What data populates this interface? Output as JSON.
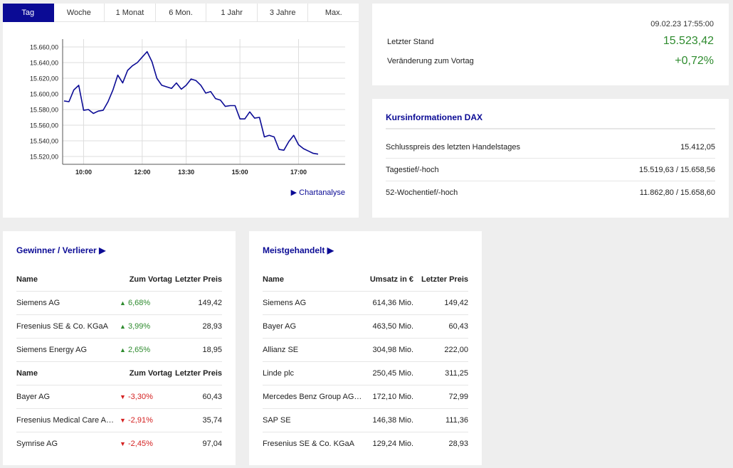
{
  "tabs": [
    "Tag",
    "Woche",
    "1 Monat",
    "6 Mon.",
    "1 Jahr",
    "3 Jahre",
    "Max."
  ],
  "active_tab": "Tag",
  "chart_link": "Chartanalyse",
  "chart_data": {
    "type": "line",
    "y_ticks": [
      "15.660,00",
      "15.640,00",
      "15.620,00",
      "15.600,00",
      "15.580,00",
      "15.560,00",
      "15.540,00",
      "15.520,00"
    ],
    "x_ticks": [
      "10:00",
      "12:00",
      "13:30",
      "15:00",
      "17:00"
    ],
    "ylim": [
      15510,
      15670
    ],
    "series": [
      {
        "color": "#0b0b95",
        "points": [
          [
            1,
            15591
          ],
          [
            2,
            15590
          ],
          [
            3,
            15605
          ],
          [
            4,
            15611
          ],
          [
            5,
            15579
          ],
          [
            6,
            15580
          ],
          [
            7,
            15575
          ],
          [
            8,
            15578
          ],
          [
            9,
            15579
          ],
          [
            10,
            15590
          ],
          [
            11,
            15605
          ],
          [
            12,
            15624
          ],
          [
            13,
            15614
          ],
          [
            14,
            15630
          ],
          [
            15,
            15636
          ],
          [
            16,
            15640
          ],
          [
            17,
            15647
          ],
          [
            18,
            15654
          ],
          [
            19,
            15641
          ],
          [
            20,
            15620
          ],
          [
            21,
            15611
          ],
          [
            22,
            15609
          ],
          [
            23,
            15607
          ],
          [
            24,
            15614
          ],
          [
            25,
            15606
          ],
          [
            26,
            15611
          ],
          [
            27,
            15619
          ],
          [
            28,
            15617
          ],
          [
            29,
            15611
          ],
          [
            30,
            15601
          ],
          [
            31,
            15603
          ],
          [
            32,
            15594
          ],
          [
            33,
            15592
          ],
          [
            34,
            15584
          ],
          [
            35,
            15585
          ],
          [
            36,
            15585
          ],
          [
            37,
            15568
          ],
          [
            38,
            15568
          ],
          [
            39,
            15577
          ],
          [
            40,
            15569
          ],
          [
            41,
            15570
          ],
          [
            42,
            15545
          ],
          [
            43,
            15547
          ],
          [
            44,
            15545
          ],
          [
            45,
            15529
          ],
          [
            46,
            15528
          ],
          [
            47,
            15539
          ],
          [
            48,
            15547
          ],
          [
            49,
            15535
          ],
          [
            50,
            15530
          ],
          [
            51,
            15527
          ],
          [
            52,
            15524
          ],
          [
            53,
            15523
          ]
        ]
      }
    ],
    "x_tick_index": [
      5,
      17,
      26,
      37,
      49
    ]
  },
  "quote": {
    "date": "09.02.23 17:55:00",
    "last_label": "Letzter Stand",
    "last_value": "15.523,42",
    "change_label": "Veränderung zum Vortag",
    "change_value": "+0,72%",
    "positive_color": "#2e8b2e"
  },
  "kurs": {
    "title": "Kursinformationen DAX",
    "rows": [
      {
        "label": "Schlusspreis des letzten Handelstages",
        "value": "15.412,05"
      },
      {
        "label": "Tagestief/-hoch",
        "value": "15.519,63 / 15.658,56"
      },
      {
        "label": "52-Wochentief/-hoch",
        "value": "11.862,80 / 15.658,60"
      }
    ]
  },
  "gewinner": {
    "title": "Gewinner / Verlierer",
    "headers": [
      "Name",
      "Zum Vortag",
      "Letzter Preis"
    ],
    "gainers": [
      {
        "name": "Siemens AG",
        "change": "6,68%",
        "price": "149,42"
      },
      {
        "name": "Fresenius SE & Co. KGaA",
        "change": "3,99%",
        "price": "28,93"
      },
      {
        "name": "Siemens Energy AG",
        "change": "2,65%",
        "price": "18,95"
      }
    ],
    "losers": [
      {
        "name": "Bayer AG",
        "change": "-3,30%",
        "price": "60,43"
      },
      {
        "name": "Fresenius Medical Care A…",
        "change": "-2,91%",
        "price": "35,74"
      },
      {
        "name": "Symrise AG",
        "change": "-2,45%",
        "price": "97,04"
      }
    ]
  },
  "meist": {
    "title": "Meistgehandelt",
    "headers": [
      "Name",
      "Umsatz in €",
      "Letzter Preis"
    ],
    "rows": [
      {
        "name": "Siemens AG",
        "umsatz": "614,36 Mio.",
        "price": "149,42"
      },
      {
        "name": "Bayer AG",
        "umsatz": "463,50 Mio.",
        "price": "60,43"
      },
      {
        "name": "Allianz SE",
        "umsatz": "304,98 Mio.",
        "price": "222,00"
      },
      {
        "name": "Linde plc",
        "umsatz": "250,45 Mio.",
        "price": "311,25"
      },
      {
        "name": "Mercedes Benz Group AG…",
        "umsatz": "172,10 Mio.",
        "price": "72,99"
      },
      {
        "name": "SAP SE",
        "umsatz": "146,38 Mio.",
        "price": "111,36"
      },
      {
        "name": "Fresenius SE & Co. KGaA",
        "umsatz": "129,24 Mio.",
        "price": "28,93"
      }
    ]
  }
}
